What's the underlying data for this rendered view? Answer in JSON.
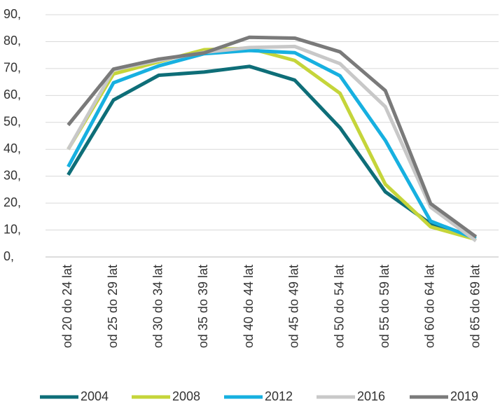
{
  "chart_data": {
    "type": "line",
    "categories": [
      "od 20 do 24 lat",
      "od 25 do 29 lat",
      "od 30 do 34 lat",
      "od 35 do 39 lat",
      "od 40 do 44 lat",
      "od 45 do 49 lat",
      "od 50 do 54 lat",
      "od 55 do 59 lat",
      "od 60 do 64 lat",
      "od 65 do 69 lat"
    ],
    "series": [
      {
        "name": "2004",
        "color": "#0e6e78",
        "values": [
          30.5,
          58.3,
          67.5,
          68.7,
          70.8,
          65.7,
          48,
          24.2,
          12.3,
          7
        ]
      },
      {
        "name": "2008",
        "color": "#c5d53a",
        "values": [
          40,
          68,
          72.5,
          77,
          77.5,
          73,
          60.8,
          27,
          11.2,
          6.5
        ]
      },
      {
        "name": "2012",
        "color": "#17b0e0",
        "values": [
          33.5,
          64.7,
          71,
          75.5,
          76.7,
          75.9,
          67.3,
          43.3,
          13.3,
          6.8
        ]
      },
      {
        "name": "2016",
        "color": "#c8c8c8",
        "values": [
          40,
          69.5,
          73,
          76,
          77.8,
          78.2,
          71.8,
          55.8,
          18.5,
          6
        ]
      },
      {
        "name": "2019",
        "color": "#7a7a7a",
        "values": [
          49,
          69.8,
          73.5,
          75.8,
          81.6,
          81.3,
          76.2,
          61.8,
          19.8,
          7.5
        ]
      }
    ],
    "ylim": [
      0,
      90
    ],
    "yticks": [
      {
        "value": 0,
        "label": "0,"
      },
      {
        "value": 10,
        "label": "10,"
      },
      {
        "value": 20,
        "label": "20,"
      },
      {
        "value": 30,
        "label": "30,"
      },
      {
        "value": 40,
        "label": "40,"
      },
      {
        "value": 50,
        "label": "50,"
      },
      {
        "value": 60,
        "label": "60,"
      },
      {
        "value": 70,
        "label": "70,"
      },
      {
        "value": 80,
        "label": "80,"
      },
      {
        "value": 90,
        "label": "90,"
      }
    ],
    "grid": true,
    "legend": "bottom"
  }
}
